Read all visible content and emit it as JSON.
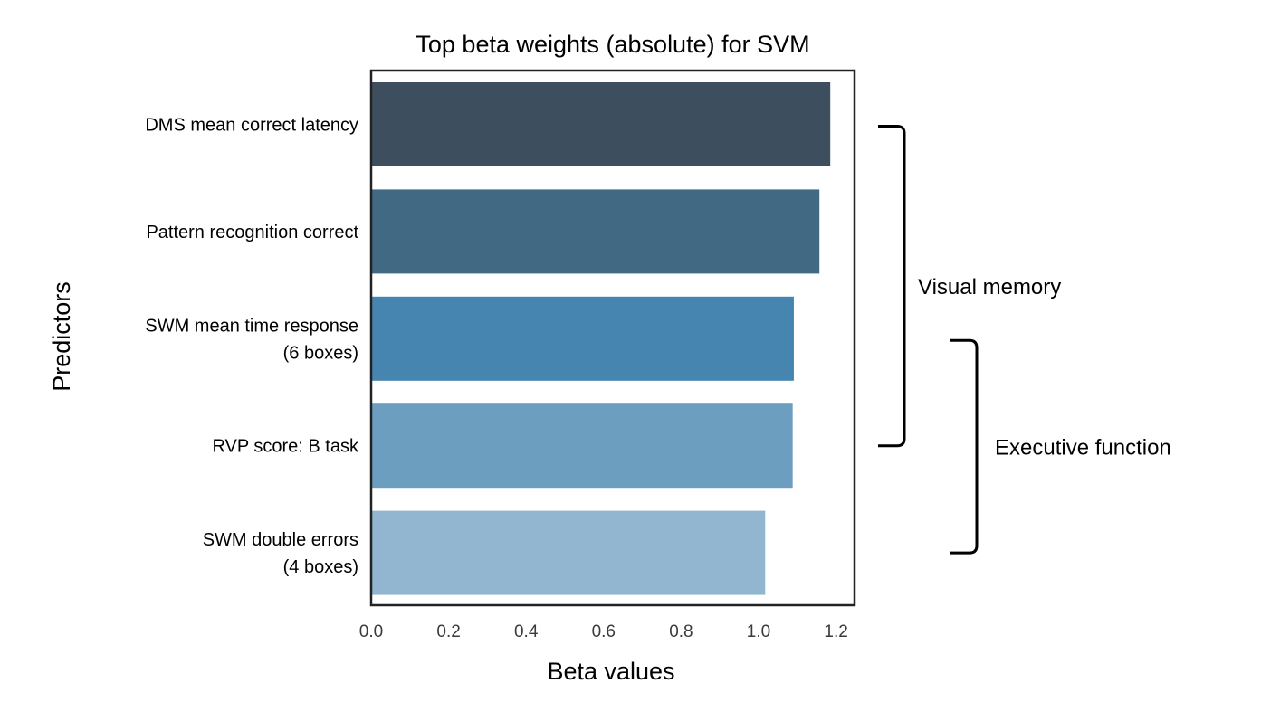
{
  "chart_data": {
    "type": "bar",
    "orientation": "horizontal",
    "title": "Top beta weights (absolute) for SVM",
    "xlabel": "Beta values",
    "ylabel": "Predictors",
    "xlim": [
      0,
      1.25
    ],
    "xticks": [
      "0.0",
      "0.2",
      "0.4",
      "0.6",
      "0.8",
      "1.0",
      "1.2"
    ],
    "grid": false,
    "categories": [
      [
        "DMS mean correct latency"
      ],
      [
        "Pattern recognition correct"
      ],
      [
        "SWM mean time response",
        "(6 boxes)"
      ],
      [
        "RVP score: B task"
      ],
      [
        "SWM double errors",
        "(4 boxes)"
      ]
    ],
    "values": [
      1.185,
      1.157,
      1.091,
      1.088,
      1.017
    ],
    "colors": [
      "#3d4f5f",
      "#426984",
      "#4785b1",
      "#6c9ec0",
      "#92b6d0"
    ],
    "groups": [
      {
        "label": "Visual memory",
        "from_category": 0,
        "to_category": 3
      },
      {
        "label": "Executive function",
        "from_category": 2,
        "to_category": 4
      }
    ]
  }
}
